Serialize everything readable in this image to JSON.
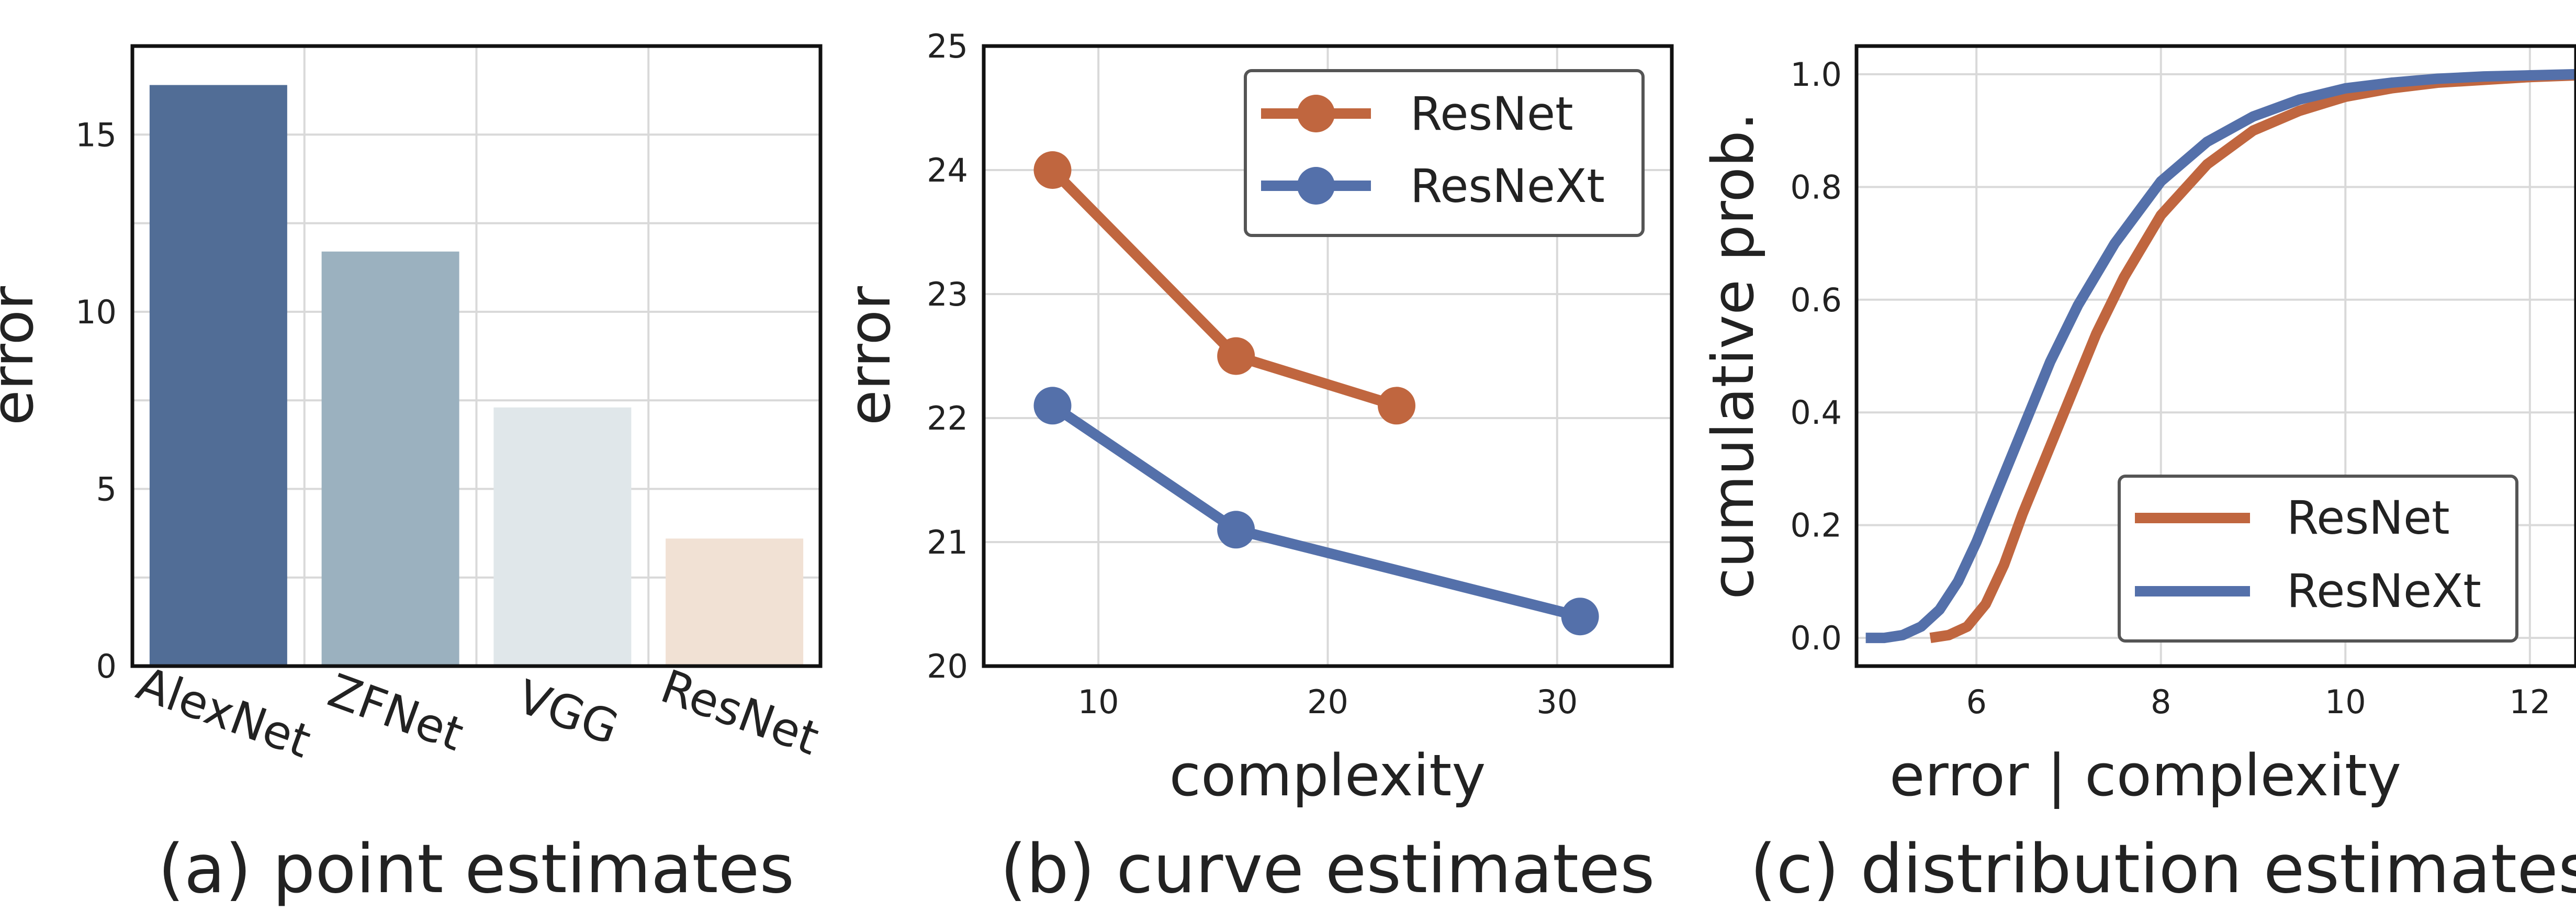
{
  "colors": {
    "resnet": "#c0663f",
    "resnext": "#5470aa",
    "bars": [
      "#516d96",
      "#9bb1bf",
      "#e0e7ea",
      "#f1e1d4"
    ]
  },
  "chart_data": [
    {
      "type": "bar",
      "caption": "(a) point estimates",
      "ylabel": "error",
      "categories": [
        "AlexNet",
        "ZFNet",
        "VGG",
        "ResNet"
      ],
      "values": [
        16.4,
        11.7,
        7.3,
        3.6
      ],
      "ylim": [
        0,
        17.5
      ],
      "yticks": [
        0,
        5,
        10,
        15
      ],
      "grid": true
    },
    {
      "type": "line",
      "caption": "(b) curve estimates",
      "xlabel": "complexity",
      "ylabel": "error",
      "xlim": [
        5,
        35
      ],
      "ylim": [
        20,
        25
      ],
      "xticks": [
        10,
        20,
        30
      ],
      "yticks": [
        20,
        21,
        22,
        23,
        24,
        25
      ],
      "legend": "top-right",
      "series": [
        {
          "name": "ResNet",
          "x": [
            8,
            16,
            23
          ],
          "y": [
            24.0,
            22.5,
            22.1
          ]
        },
        {
          "name": "ResNeXt",
          "x": [
            8,
            16,
            31
          ],
          "y": [
            22.1,
            21.1,
            20.4
          ]
        }
      ],
      "grid": true
    },
    {
      "type": "line",
      "caption": "(c) distribution estimates",
      "xlabel": "error | complexity",
      "ylabel": "cumulative prob.",
      "xlim": [
        4.7,
        12.5
      ],
      "ylim": [
        -0.05,
        1.05
      ],
      "xticks": [
        6,
        8,
        10,
        12
      ],
      "yticks": [
        0.0,
        0.2,
        0.4,
        0.6,
        0.8,
        1.0
      ],
      "ytick_labels": [
        "0.0",
        "0.2",
        "0.4",
        "0.6",
        "0.8",
        "1.0"
      ],
      "legend": "bottom-right",
      "series": [
        {
          "name": "ResNet",
          "x": [
            5.5,
            5.7,
            5.9,
            6.1,
            6.3,
            6.5,
            6.7,
            7.0,
            7.3,
            7.6,
            8.0,
            8.5,
            9.0,
            9.5,
            10.0,
            10.5,
            11.0,
            11.5,
            12.0,
            12.5
          ],
          "y": [
            0.0,
            0.005,
            0.02,
            0.06,
            0.13,
            0.22,
            0.3,
            0.42,
            0.54,
            0.64,
            0.75,
            0.84,
            0.9,
            0.935,
            0.96,
            0.975,
            0.985,
            0.99,
            0.995,
            0.998
          ]
        },
        {
          "name": "ResNeXt",
          "x": [
            4.8,
            5.0,
            5.2,
            5.4,
            5.6,
            5.8,
            6.0,
            6.2,
            6.5,
            6.8,
            7.1,
            7.5,
            8.0,
            8.5,
            9.0,
            9.5,
            10.0,
            10.5,
            11.0,
            11.5,
            12.0,
            12.5
          ],
          "y": [
            0.0,
            0.0,
            0.005,
            0.02,
            0.05,
            0.1,
            0.17,
            0.25,
            0.37,
            0.49,
            0.59,
            0.7,
            0.81,
            0.88,
            0.925,
            0.955,
            0.975,
            0.985,
            0.992,
            0.996,
            0.998,
            1.0
          ]
        }
      ],
      "grid": true
    }
  ]
}
